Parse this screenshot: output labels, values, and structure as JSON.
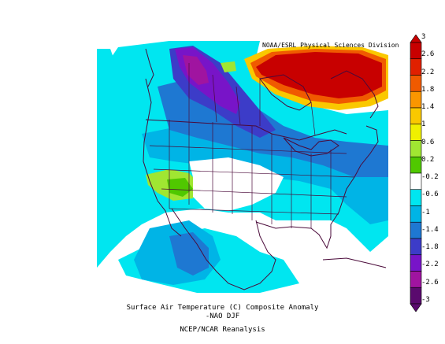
{
  "credit": "NOAA/ESRL Physical Sciences Division",
  "caption": {
    "line1": "Surface Air Temperature (C) Composite Anomaly",
    "line2": "-NAO DJF",
    "line3": "NCEP/NCAR Reanalysis"
  },
  "colorbar": {
    "labels": [
      "3",
      "2.6",
      "2.2",
      "1.8",
      "1.4",
      "1",
      "0.6",
      "0.2",
      "-0.2",
      "-0.6",
      "-1",
      "-1.4",
      "-1.8",
      "-2.2",
      "-2.6",
      "-3"
    ],
    "colors": [
      "#c80000",
      "#e02000",
      "#f05a00",
      "#fa9600",
      "#fac800",
      "#f0f000",
      "#a0e632",
      "#50c800",
      "#ffffff",
      "#00e6f0",
      "#00b4e6",
      "#1e78d2",
      "#3c3cc8",
      "#7814c8",
      "#a014a0",
      "#5a0a6e"
    ]
  },
  "regions": {
    "strong_warm": "#c80000",
    "warm": "#f05a00",
    "moderate_warm": "#fac800",
    "slight_warm": "#a0e632",
    "neutral": "#ffffff",
    "slight_cold": "#00e6f0",
    "cold": "#00b4e6",
    "moderate_cold": "#1e78d2",
    "strong_cold": "#3c3cc8",
    "very_cold": "#7814c8",
    "extreme_cold": "#a014a0"
  }
}
